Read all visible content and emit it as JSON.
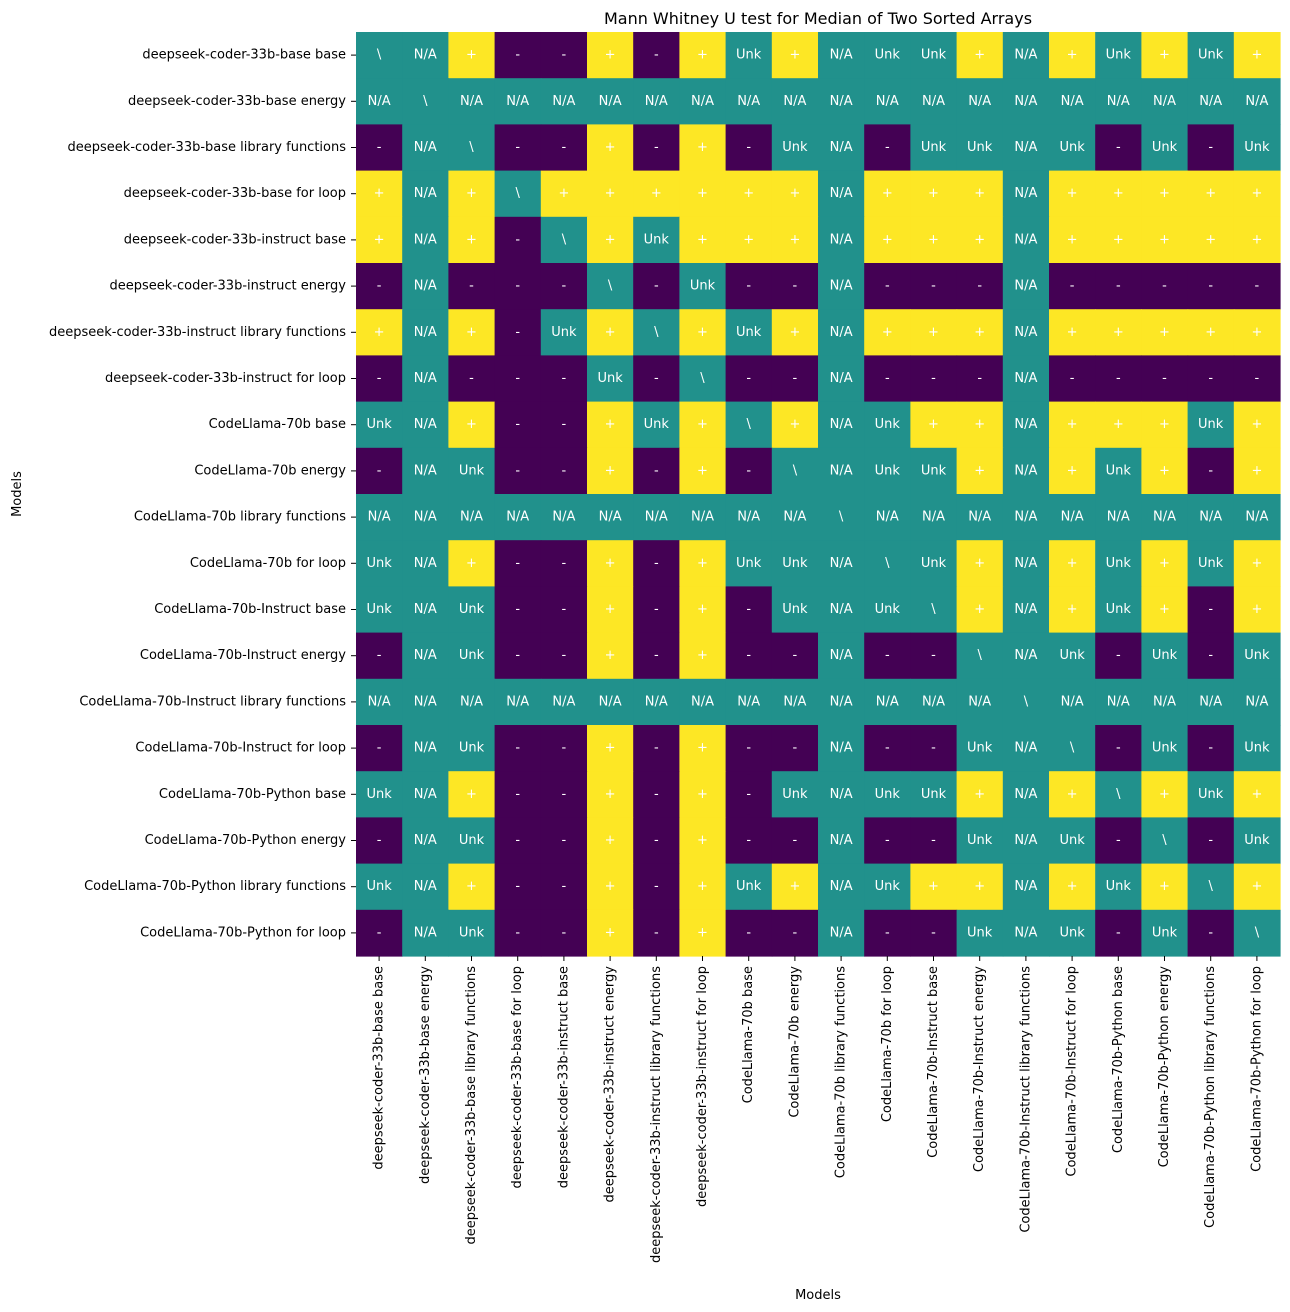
{
  "chart_data": {
    "type": "heatmap",
    "title": "Mann Whitney U test for Median of Two Sorted Arrays",
    "xlabel": "Models",
    "ylabel": "Models",
    "labels": [
      "deepseek-coder-33b-base base",
      "deepseek-coder-33b-base energy",
      "deepseek-coder-33b-base library functions",
      "deepseek-coder-33b-base for loop",
      "deepseek-coder-33b-instruct base",
      "deepseek-coder-33b-instruct energy",
      "deepseek-coder-33b-instruct library functions",
      "deepseek-coder-33b-instruct for loop",
      "CodeLlama-70b base",
      "CodeLlama-70b energy",
      "CodeLlama-70b library functions",
      "CodeLlama-70b for loop",
      "CodeLlama-70b-Instruct base",
      "CodeLlama-70b-Instruct energy",
      "CodeLlama-70b-Instruct library functions",
      "CodeLlama-70b-Instruct for loop",
      "CodeLlama-70b-Python base",
      "CodeLlama-70b-Python energy",
      "CodeLlama-70b-Python library functions",
      "CodeLlama-70b-Python for loop"
    ],
    "colors": {
      "plus": "#fde725",
      "minus": "#440154",
      "neutral": "#21918c"
    },
    "cells": [
      [
        "\\",
        "N/A",
        "+",
        "-",
        "-",
        "+",
        "-",
        "+",
        "Unk",
        "+",
        "N/A",
        "Unk",
        "Unk",
        "+",
        "N/A",
        "+",
        "Unk",
        "+",
        "Unk",
        "+"
      ],
      [
        "N/A",
        "\\",
        "N/A",
        "N/A",
        "N/A",
        "N/A",
        "N/A",
        "N/A",
        "N/A",
        "N/A",
        "N/A",
        "N/A",
        "N/A",
        "N/A",
        "N/A",
        "N/A",
        "N/A",
        "N/A",
        "N/A",
        "N/A"
      ],
      [
        "-",
        "N/A",
        "\\",
        "-",
        "-",
        "+",
        "-",
        "+",
        "-",
        "Unk",
        "N/A",
        "-",
        "Unk",
        "Unk",
        "N/A",
        "Unk",
        "-",
        "Unk",
        "-",
        "Unk"
      ],
      [
        "+",
        "N/A",
        "+",
        "\\",
        "+",
        "+",
        "+",
        "+",
        "+",
        "+",
        "N/A",
        "+",
        "+",
        "+",
        "N/A",
        "+",
        "+",
        "+",
        "+",
        "+"
      ],
      [
        "+",
        "N/A",
        "+",
        "-",
        "\\",
        "+",
        "Unk",
        "+",
        "+",
        "+",
        "N/A",
        "+",
        "+",
        "+",
        "N/A",
        "+",
        "+",
        "+",
        "+",
        "+"
      ],
      [
        "-",
        "N/A",
        "-",
        "-",
        "-",
        "\\",
        "-",
        "Unk",
        "-",
        "-",
        "N/A",
        "-",
        "-",
        "-",
        "N/A",
        "-",
        "-",
        "-",
        "-",
        "-"
      ],
      [
        "+",
        "N/A",
        "+",
        "-",
        "Unk",
        "+",
        "\\",
        "+",
        "Unk",
        "+",
        "N/A",
        "+",
        "+",
        "+",
        "N/A",
        "+",
        "+",
        "+",
        "+",
        "+"
      ],
      [
        "-",
        "N/A",
        "-",
        "-",
        "-",
        "Unk",
        "-",
        "\\",
        "-",
        "-",
        "N/A",
        "-",
        "-",
        "-",
        "N/A",
        "-",
        "-",
        "-",
        "-",
        "-"
      ],
      [
        "Unk",
        "N/A",
        "+",
        "-",
        "-",
        "+",
        "Unk",
        "+",
        "\\",
        "+",
        "N/A",
        "Unk",
        "+",
        "+",
        "N/A",
        "+",
        "+",
        "+",
        "Unk",
        "+"
      ],
      [
        "-",
        "N/A",
        "Unk",
        "-",
        "-",
        "+",
        "-",
        "+",
        "-",
        "\\",
        "N/A",
        "Unk",
        "Unk",
        "+",
        "N/A",
        "+",
        "Unk",
        "+",
        "-",
        "+"
      ],
      [
        "N/A",
        "N/A",
        "N/A",
        "N/A",
        "N/A",
        "N/A",
        "N/A",
        "N/A",
        "N/A",
        "N/A",
        "\\",
        "N/A",
        "N/A",
        "N/A",
        "N/A",
        "N/A",
        "N/A",
        "N/A",
        "N/A",
        "N/A"
      ],
      [
        "Unk",
        "N/A",
        "+",
        "-",
        "-",
        "+",
        "-",
        "+",
        "Unk",
        "Unk",
        "N/A",
        "\\",
        "Unk",
        "+",
        "N/A",
        "+",
        "Unk",
        "+",
        "Unk",
        "+"
      ],
      [
        "Unk",
        "N/A",
        "Unk",
        "-",
        "-",
        "+",
        "-",
        "+",
        "-",
        "Unk",
        "N/A",
        "Unk",
        "\\",
        "+",
        "N/A",
        "+",
        "Unk",
        "+",
        "-",
        "+"
      ],
      [
        "-",
        "N/A",
        "Unk",
        "-",
        "-",
        "+",
        "-",
        "+",
        "-",
        "-",
        "N/A",
        "-",
        "-",
        "\\",
        "N/A",
        "Unk",
        "-",
        "Unk",
        "-",
        "Unk"
      ],
      [
        "N/A",
        "N/A",
        "N/A",
        "N/A",
        "N/A",
        "N/A",
        "N/A",
        "N/A",
        "N/A",
        "N/A",
        "N/A",
        "N/A",
        "N/A",
        "N/A",
        "\\",
        "N/A",
        "N/A",
        "N/A",
        "N/A",
        "N/A"
      ],
      [
        "-",
        "N/A",
        "Unk",
        "-",
        "-",
        "+",
        "-",
        "+",
        "-",
        "-",
        "N/A",
        "-",
        "-",
        "Unk",
        "N/A",
        "\\",
        "-",
        "Unk",
        "-",
        "Unk"
      ],
      [
        "Unk",
        "N/A",
        "+",
        "-",
        "-",
        "+",
        "-",
        "+",
        "-",
        "Unk",
        "N/A",
        "Unk",
        "Unk",
        "+",
        "N/A",
        "+",
        "\\",
        "+",
        "Unk",
        "+"
      ],
      [
        "-",
        "N/A",
        "Unk",
        "-",
        "-",
        "+",
        "-",
        "+",
        "-",
        "-",
        "N/A",
        "-",
        "-",
        "Unk",
        "N/A",
        "Unk",
        "-",
        "\\",
        "-",
        "Unk"
      ],
      [
        "Unk",
        "N/A",
        "+",
        "-",
        "-",
        "+",
        "-",
        "+",
        "Unk",
        "+",
        "N/A",
        "Unk",
        "+",
        "+",
        "N/A",
        "+",
        "Unk",
        "+",
        "\\",
        "+"
      ],
      [
        "-",
        "N/A",
        "Unk",
        "-",
        "-",
        "+",
        "-",
        "+",
        "-",
        "-",
        "N/A",
        "-",
        "-",
        "Unk",
        "N/A",
        "Unk",
        "-",
        "Unk",
        "-",
        "\\"
      ]
    ]
  }
}
